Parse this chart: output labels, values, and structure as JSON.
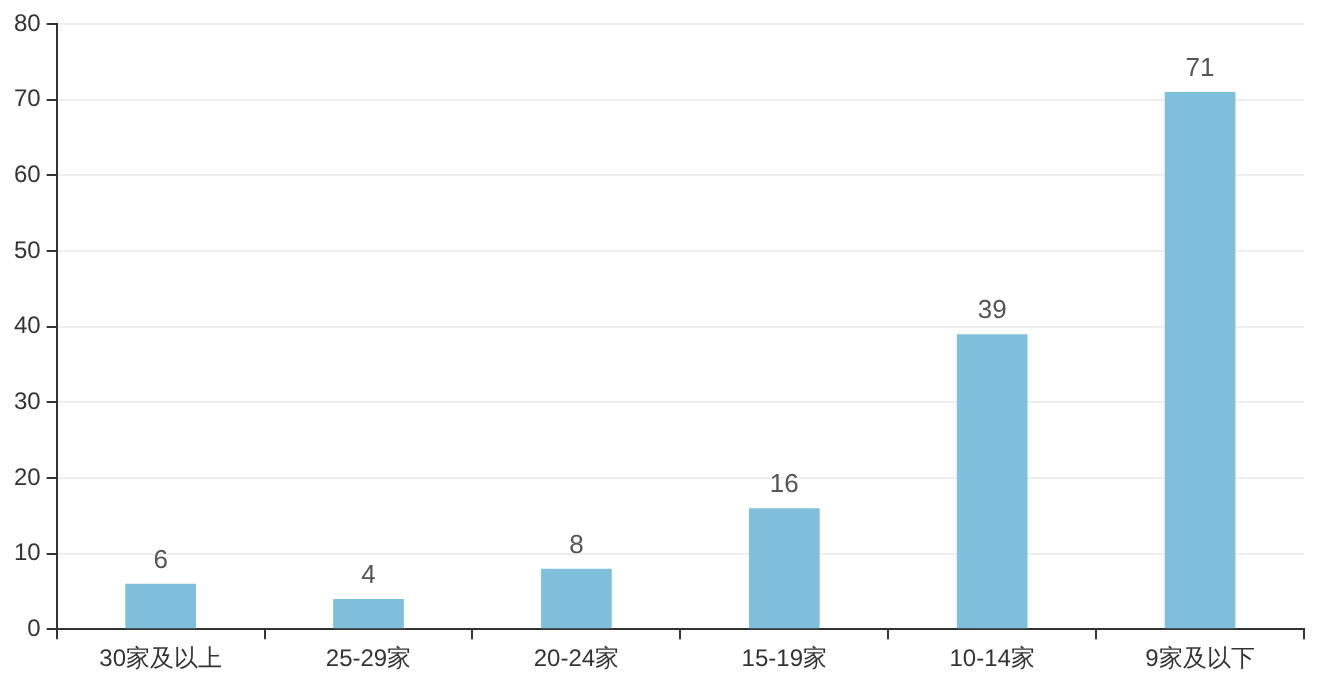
{
  "chart_data": {
    "type": "bar",
    "categories": [
      "30家及以上",
      "25-29家",
      "20-24家",
      "15-19家",
      "10-14家",
      "9家及以下"
    ],
    "values": [
      6,
      4,
      8,
      16,
      39,
      71
    ],
    "color": "#7fbfdc",
    "ylim": [
      0,
      80
    ],
    "yticks": [
      0,
      10,
      20,
      30,
      40,
      50,
      60,
      70,
      80
    ],
    "grid": "y",
    "data_labels": true,
    "legend": false
  }
}
